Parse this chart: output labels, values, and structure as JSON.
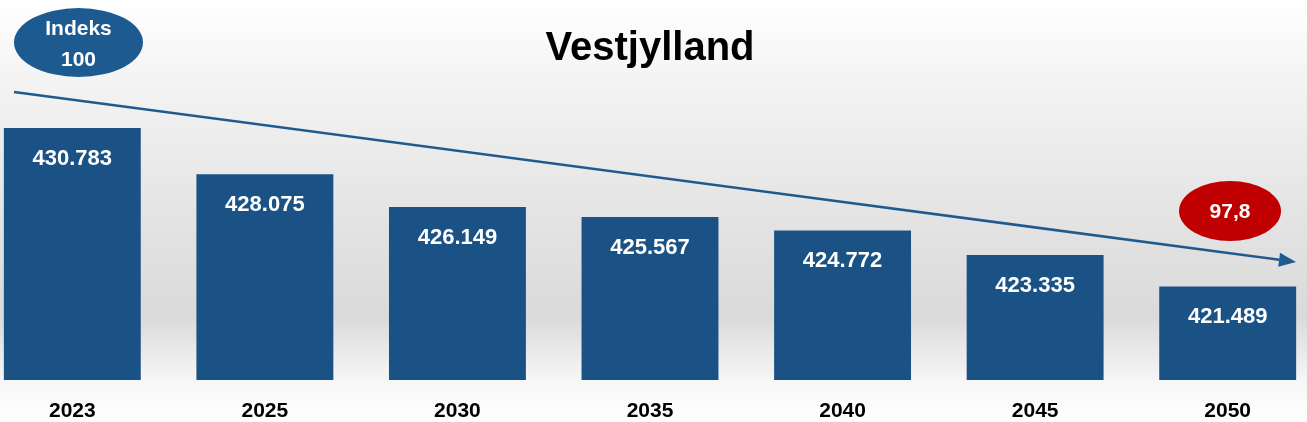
{
  "chart_data": {
    "type": "bar",
    "title": "Vestjylland",
    "categories": [
      "2023",
      "2025",
      "2030",
      "2035",
      "2040",
      "2045",
      "2050"
    ],
    "values": [
      430783,
      428075,
      426149,
      425567,
      424772,
      423335,
      421489
    ],
    "value_labels": [
      "430.783",
      "428.075",
      "426.149",
      "425.567",
      "424.772",
      "423.335",
      "421.489"
    ],
    "color": "#1b5285",
    "ylim": [
      416000,
      430783
    ],
    "tick_labels": "x",
    "annotations": [
      "Indeks 100",
      "97,8"
    ]
  }
}
